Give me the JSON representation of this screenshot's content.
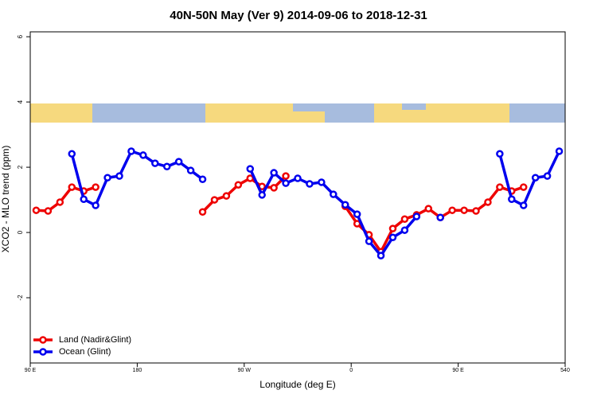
{
  "chart_data": {
    "type": "line",
    "title": "40N-50N May (Ver 9)   2014-09-06 to 2018-12-31",
    "x_label": "Longitude (deg E)",
    "y_label": "XCO2 - MLO trend (ppm)",
    "xlim": [
      90,
      540
    ],
    "ylim": [
      -4,
      6.15
    ],
    "xticks": [
      {
        "value": 90,
        "label": "90 E"
      },
      180,
      {
        "value": 270,
        "label": "90 W"
      },
      {
        "value": 360,
        "label": "0"
      },
      {
        "value": 450,
        "label": "90 E"
      },
      540
    ],
    "yticks": [
      6,
      4,
      2,
      0,
      -2
    ],
    "legend": "bottom-left",
    "series": [
      {
        "name": "Land (Nadir&Glint)",
        "color": "#ee0000",
        "x": [
          95,
          105,
          115,
          125,
          135,
          145,
          null,
          235,
          245,
          255,
          265,
          275,
          285,
          295,
          305,
          null,
          355,
          365,
          375,
          385,
          395,
          405,
          415,
          425,
          435,
          445,
          455,
          465,
          475,
          485,
          495,
          505
        ],
        "values": [
          0.68,
          0.66,
          0.93,
          1.39,
          1.27,
          1.39,
          null,
          0.63,
          1.0,
          1.12,
          1.46,
          1.66,
          1.41,
          1.37,
          1.73,
          null,
          0.8,
          0.27,
          -0.07,
          -0.59,
          0.12,
          0.41,
          0.54,
          0.73,
          0.46,
          0.68,
          0.68,
          0.66,
          0.93,
          1.39,
          1.27,
          1.39
        ]
      },
      {
        "name": "Ocean (Glint)",
        "color": "#0000ee",
        "x": [
          125,
          135,
          145,
          155,
          165,
          175,
          185,
          195,
          205,
          215,
          225,
          235,
          null,
          275,
          285,
          295,
          305,
          315,
          325,
          335,
          345,
          355,
          365,
          375,
          385,
          395,
          405,
          415,
          null,
          435,
          null,
          485,
          495,
          505,
          515,
          525,
          535
        ],
        "values": [
          2.41,
          1.02,
          0.83,
          1.68,
          1.73,
          2.49,
          2.37,
          2.12,
          2.02,
          2.17,
          1.9,
          1.63,
          null,
          1.95,
          1.15,
          1.83,
          1.51,
          1.66,
          1.49,
          1.54,
          1.17,
          0.85,
          0.56,
          -0.27,
          -0.71,
          -0.15,
          0.07,
          0.49,
          null,
          0.46,
          null,
          2.41,
          1.02,
          0.83,
          1.68,
          1.73,
          2.49
        ]
      }
    ]
  }
}
